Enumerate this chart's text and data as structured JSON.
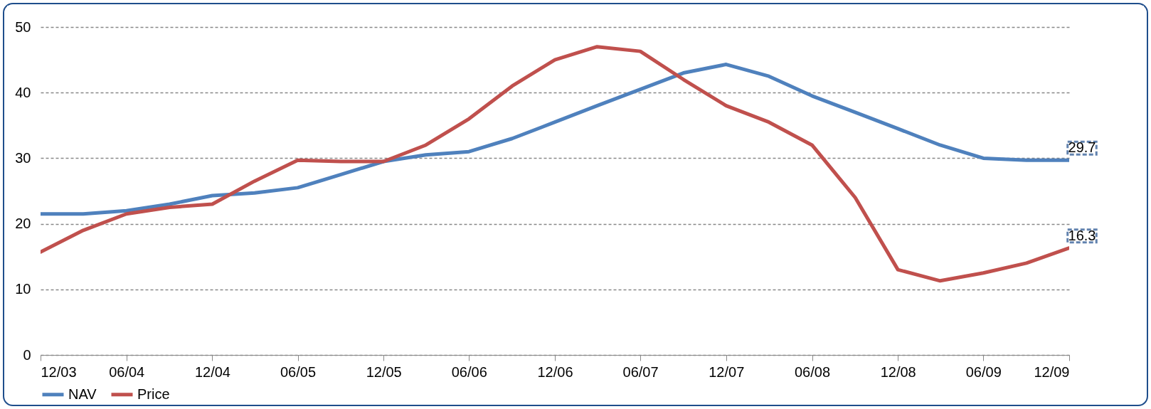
{
  "chart_data": {
    "type": "line",
    "x": [
      "2003-12",
      "2004-03",
      "2004-06",
      "2004-09",
      "2004-12",
      "2005-03",
      "2005-06",
      "2005-09",
      "2005-12",
      "2006-03",
      "2006-06",
      "2006-09",
      "2006-12",
      "2007-03",
      "2007-06",
      "2007-09",
      "2007-12",
      "2008-03",
      "2008-06",
      "2008-09",
      "2008-12",
      "2009-03",
      "2009-06",
      "2009-09",
      "2009-12"
    ],
    "series": [
      {
        "name": "NAV",
        "color": "#4f81bd",
        "values": [
          21.5,
          21.5,
          22,
          23,
          24.3,
          24.7,
          25.5,
          27.5,
          29.5,
          30.5,
          31,
          33,
          35.5,
          38,
          40.5,
          43,
          44.3,
          42.5,
          39.5,
          37,
          34.5,
          32,
          30,
          29.7,
          29.7
        ]
      },
      {
        "name": "Price",
        "color": "#c0504d",
        "values": [
          15.7,
          19,
          21.5,
          22.5,
          23,
          26.5,
          29.7,
          29.5,
          29.5,
          32,
          36,
          41,
          45,
          47,
          46.3,
          42,
          38,
          35.5,
          32,
          24,
          13,
          11.3,
          12.5,
          14,
          16.3
        ]
      }
    ],
    "ylim": [
      0,
      50
    ],
    "yticks": [
      0,
      10,
      20,
      30,
      40,
      50
    ],
    "xlim": [
      "2003-12",
      "2009-12"
    ],
    "xticks": [
      {
        "value": "2003-12",
        "label": "12/03"
      },
      {
        "value": "2004-06",
        "label": "06/04"
      },
      {
        "value": "2004-12",
        "label": "12/04"
      },
      {
        "value": "2005-06",
        "label": "06/05"
      },
      {
        "value": "2005-12",
        "label": "12/05"
      },
      {
        "value": "2006-06",
        "label": "06/06"
      },
      {
        "value": "2006-12",
        "label": "12/06"
      },
      {
        "value": "2007-06",
        "label": "06/07"
      },
      {
        "value": "2007-12",
        "label": "12/07"
      },
      {
        "value": "2008-06",
        "label": "06/08"
      },
      {
        "value": "2008-12",
        "label": "12/08"
      },
      {
        "value": "2009-06",
        "label": "06/09"
      },
      {
        "value": "2009-12",
        "label": "12/09"
      }
    ],
    "annotations": [
      {
        "text": "29.7",
        "x": "2009-12",
        "y": 29.7
      },
      {
        "text": "16.3",
        "x": "2009-12",
        "y": 16.3
      }
    ],
    "grid": "y",
    "legend": "bottom",
    "line_style": "solid",
    "marker": "none"
  }
}
